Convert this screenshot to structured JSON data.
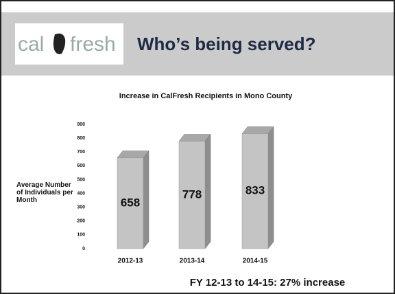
{
  "header": {
    "logo_left": "cal",
    "logo_right": "fresh",
    "title": "Who’s being served?"
  },
  "chart_data": {
    "type": "bar",
    "title": "Increase in CalFresh Recipients in Mono County",
    "y_label": "Average Number of Individuals per Month",
    "categories": [
      "2012-13",
      "2013-14",
      "2014-15"
    ],
    "values": [
      658,
      778,
      833
    ],
    "color": "#c4c4c4",
    "ylim": [
      0,
      900
    ],
    "yticks": [
      0,
      100,
      200,
      300,
      400,
      500,
      600,
      700,
      800,
      900
    ]
  },
  "footnote": "FY 12-13 to 14-15:  27% increase"
}
